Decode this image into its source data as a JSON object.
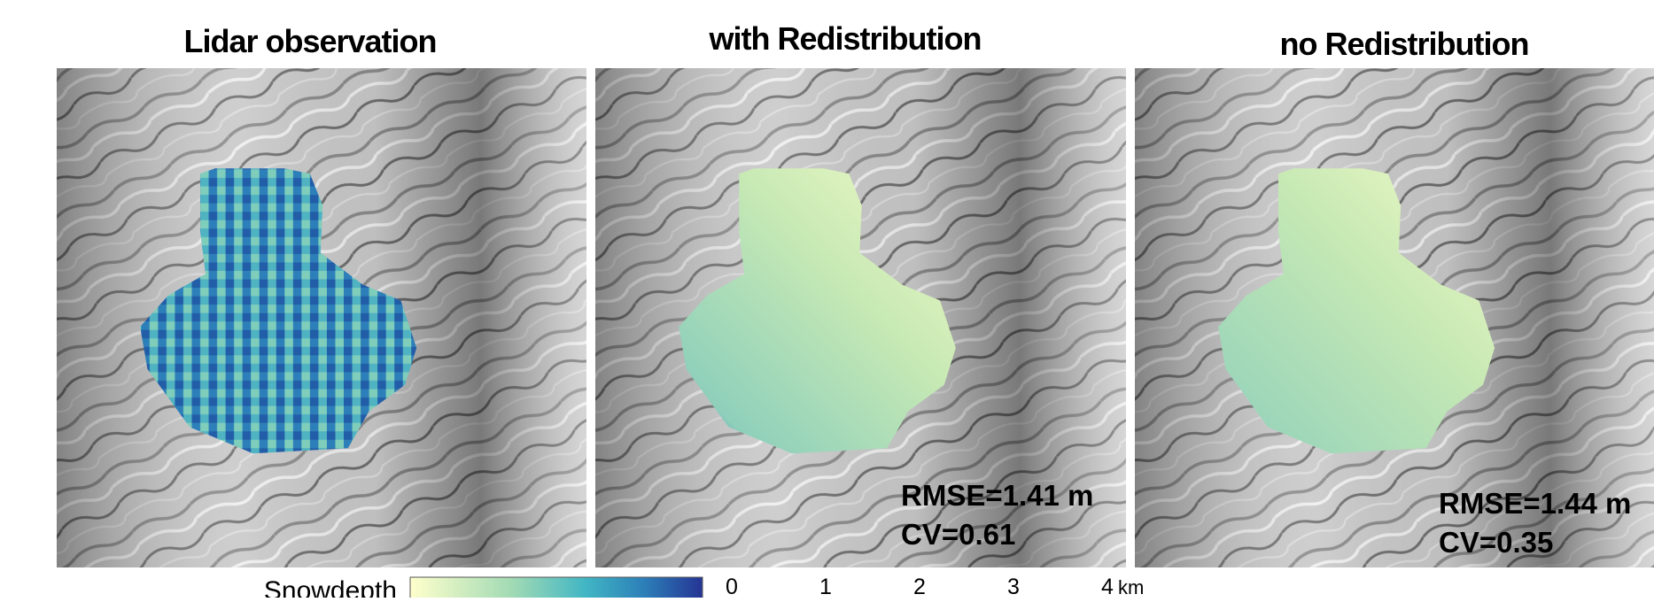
{
  "panels": [
    {
      "title": "Lidar observation"
    },
    {
      "title": "with Redistribution",
      "rmse": "RMSE=1.41 m",
      "cv": "CV=0.61"
    },
    {
      "title": "no Redistribution",
      "rmse": "RMSE=1.44 m",
      "cv": "CV=0.35"
    }
  ],
  "colorbar": {
    "label": "Snowdepth"
  },
  "scale_bar": {
    "labels": [
      "0",
      "1",
      "2",
      "3",
      "4"
    ],
    "unit": "km"
  }
}
